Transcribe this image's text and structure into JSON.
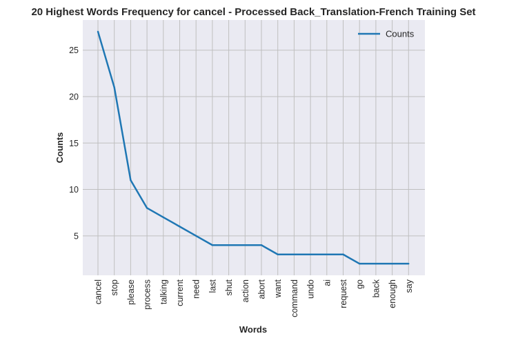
{
  "chart_data": {
    "type": "line",
    "title": "20 Highest Words Frequency for cancel - Processed Back_Translation-French Training Set",
    "xlabel": "Words",
    "ylabel": "Counts",
    "categories": [
      "cancel",
      "stop",
      "please",
      "process",
      "talking",
      "current",
      "need",
      "last",
      "shut",
      "action",
      "abort",
      "want",
      "command",
      "undo",
      "ai",
      "request",
      "go",
      "back",
      "enough",
      "say"
    ],
    "series": [
      {
        "name": "Counts",
        "values": [
          27,
          21,
          11,
          8,
          7,
          6,
          5,
          4,
          4,
          4,
          4,
          3,
          3,
          3,
          3,
          3,
          2,
          2,
          2,
          2
        ]
      }
    ],
    "yticks": [
      5,
      10,
      15,
      20,
      25
    ],
    "ylim": [
      0.75,
      28.25
    ],
    "grid": true,
    "legend_position": "top-right",
    "colors": {
      "line": "#1f77b4",
      "plot_background": "#eaeaf2",
      "grid": "#bfbfbf",
      "text": "#262626"
    }
  }
}
